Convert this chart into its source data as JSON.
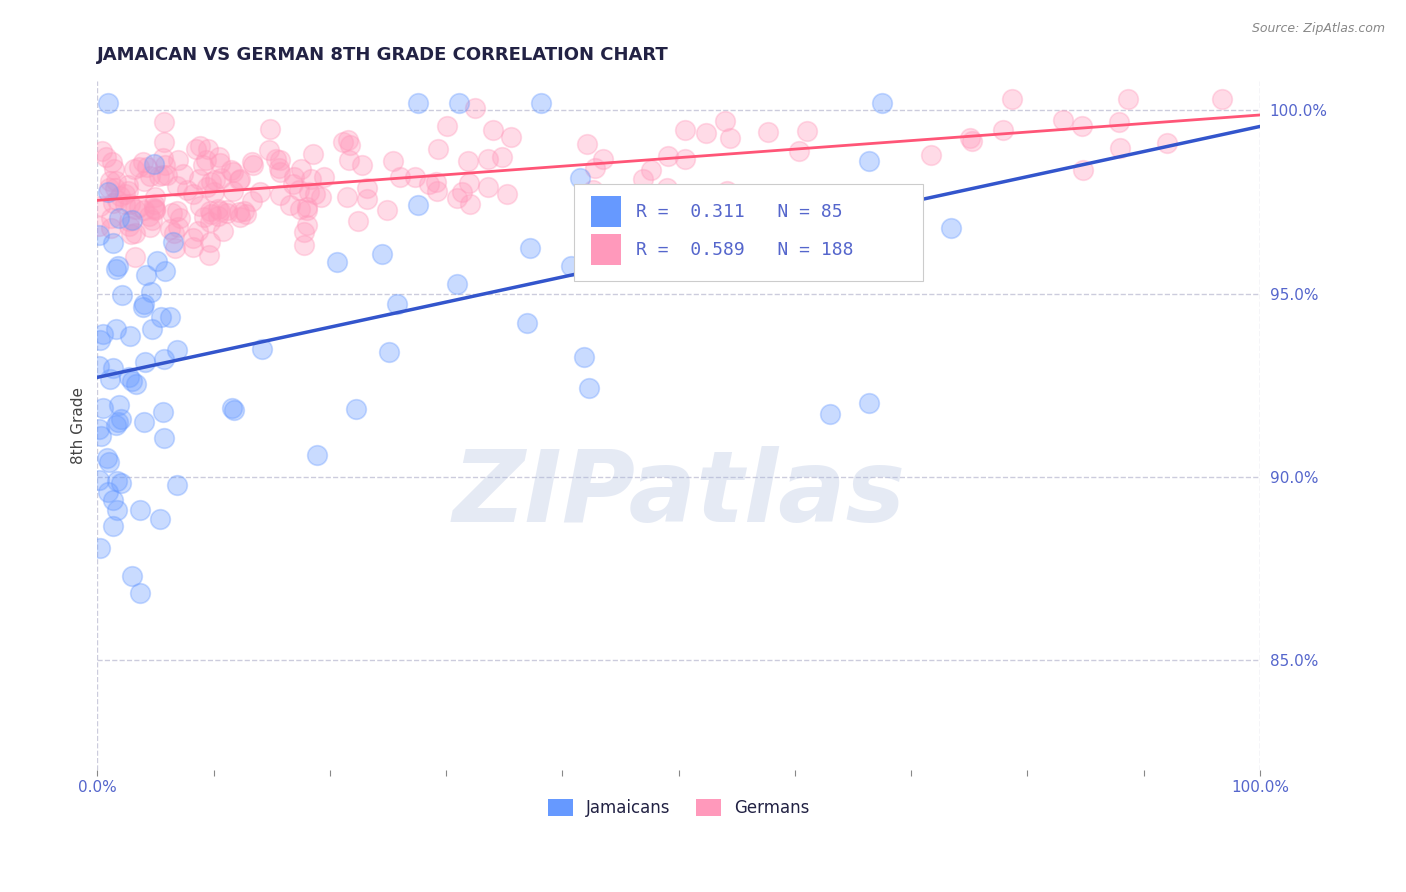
{
  "title": "JAMAICAN VS GERMAN 8TH GRADE CORRELATION CHART",
  "source_text": "Source: ZipAtlas.com",
  "ylabel": "8th Grade",
  "xlim": [
    0.0,
    1.0
  ],
  "ylim": [
    0.82,
    1.008
  ],
  "xticks": [
    0.0,
    0.1,
    0.2,
    0.3,
    0.4,
    0.5,
    0.6,
    0.7,
    0.8,
    0.9,
    1.0
  ],
  "xticklabels": [
    "0.0%",
    "",
    "",
    "",
    "",
    "",
    "",
    "",
    "",
    "",
    "100.0%"
  ],
  "yticks": [
    0.85,
    0.9,
    0.95,
    1.0
  ],
  "yticklabels": [
    "85.0%",
    "90.0%",
    "95.0%",
    "100.0%"
  ],
  "jamaican_R": 0.311,
  "jamaican_N": 85,
  "german_R": 0.589,
  "german_N": 188,
  "blue_color": "#6699FF",
  "pink_color": "#FF99BB",
  "blue_line_color": "#3355CC",
  "pink_line_color": "#FF5577",
  "watermark_text": "ZIPatlas",
  "watermark_color": "#AABBDD",
  "background_color": "#FFFFFF",
  "grid_color": "#CCCCDD",
  "title_color": "#222244",
  "axis_label_color": "#444444",
  "tick_color": "#5566CC",
  "legend_r_color": "#5566CC",
  "title_fontsize": 13,
  "source_fontsize": 9
}
